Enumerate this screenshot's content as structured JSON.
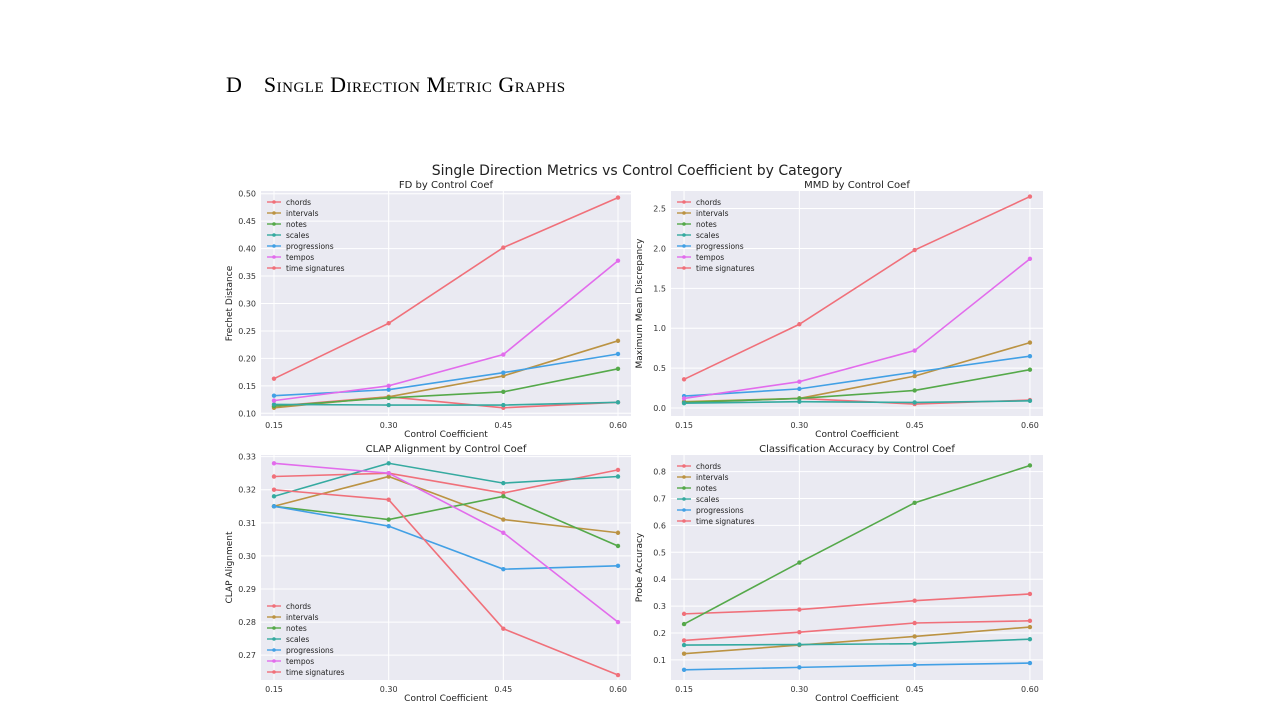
{
  "section": {
    "number": "D",
    "title": "Single Direction Metric Graphs"
  },
  "chart_data": {
    "suptitle": "Single Direction Metrics vs Control Coefficient by Category",
    "colors": {
      "chords": "#f0707a",
      "intervals": "#bb9343",
      "notes": "#55a94a",
      "scales": "#35aaa0",
      "progressions": "#42a0e5",
      "tempos": "#e26cec",
      "time signatures": "#f0707a"
    },
    "charts": [
      {
        "type": "line",
        "title": "FD by Control Coef",
        "xlabel": "Control Coefficient",
        "ylabel": "Frechet Distance",
        "x": [
          0.15,
          0.3,
          0.45,
          0.6
        ],
        "xticks": [
          "0.15",
          "0.30",
          "0.45",
          "0.60"
        ],
        "ylim": [
          0.095,
          0.505
        ],
        "yticks": [
          "0.10",
          "0.15",
          "0.20",
          "0.25",
          "0.30",
          "0.35",
          "0.40",
          "0.45",
          "0.50"
        ],
        "legend_position": "upper-left",
        "grid": true,
        "series": [
          {
            "name": "chords",
            "values": [
              0.113,
              0.13,
              0.11,
              0.12
            ]
          },
          {
            "name": "intervals",
            "values": [
              0.11,
              0.13,
              0.168,
              0.232
            ]
          },
          {
            "name": "notes",
            "values": [
              0.113,
              0.128,
              0.139,
              0.181
            ]
          },
          {
            "name": "scales",
            "values": [
              0.116,
              0.115,
              0.115,
              0.12
            ]
          },
          {
            "name": "progressions",
            "values": [
              0.132,
              0.143,
              0.174,
              0.208
            ]
          },
          {
            "name": "tempos",
            "values": [
              0.123,
              0.15,
              0.207,
              0.378
            ]
          },
          {
            "name": "time signatures",
            "values": [
              0.163,
              0.264,
              0.402,
              0.493
            ]
          }
        ]
      },
      {
        "type": "line",
        "title": "MMD by Control Coef",
        "xlabel": "Control Coefficient",
        "ylabel": "Maximum Mean Discrepancy",
        "x": [
          0.15,
          0.3,
          0.45,
          0.6
        ],
        "xticks": [
          "0.15",
          "0.30",
          "0.45",
          "0.60"
        ],
        "ylim": [
          -0.1,
          2.72
        ],
        "yticks": [
          "0.0",
          "0.5",
          "1.0",
          "1.5",
          "2.0",
          "2.5"
        ],
        "legend_position": "upper-left",
        "grid": true,
        "series": [
          {
            "name": "chords",
            "values": [
              0.07,
              0.12,
              0.05,
              0.1
            ]
          },
          {
            "name": "intervals",
            "values": [
              0.08,
              0.12,
              0.4,
              0.82
            ]
          },
          {
            "name": "notes",
            "values": [
              0.07,
              0.12,
              0.22,
              0.48
            ]
          },
          {
            "name": "scales",
            "values": [
              0.06,
              0.08,
              0.07,
              0.09
            ]
          },
          {
            "name": "progressions",
            "values": [
              0.15,
              0.24,
              0.45,
              0.65
            ]
          },
          {
            "name": "tempos",
            "values": [
              0.12,
              0.33,
              0.72,
              1.87
            ]
          },
          {
            "name": "time signatures",
            "values": [
              0.36,
              1.05,
              1.98,
              2.65
            ]
          }
        ]
      },
      {
        "type": "line",
        "title": "CLAP Alignment by Control Coef",
        "xlabel": "Control Coefficient",
        "ylabel": "CLAP Alignment",
        "x": [
          0.15,
          0.3,
          0.45,
          0.6
        ],
        "xticks": [
          "0.15",
          "0.30",
          "0.45",
          "0.60"
        ],
        "ylim": [
          0.2625,
          0.3305
        ],
        "yticks": [
          "0.27",
          "0.28",
          "0.29",
          "0.30",
          "0.31",
          "0.32",
          "0.33"
        ],
        "legend_position": "lower-left",
        "grid": true,
        "series": [
          {
            "name": "chords",
            "values": [
              0.324,
              0.325,
              0.319,
              0.326
            ]
          },
          {
            "name": "intervals",
            "values": [
              0.315,
              0.324,
              0.311,
              0.307
            ]
          },
          {
            "name": "notes",
            "values": [
              0.315,
              0.311,
              0.318,
              0.303
            ]
          },
          {
            "name": "scales",
            "values": [
              0.318,
              0.328,
              0.322,
              0.324
            ]
          },
          {
            "name": "progressions",
            "values": [
              0.315,
              0.309,
              0.296,
              0.297
            ]
          },
          {
            "name": "tempos",
            "values": [
              0.328,
              0.325,
              0.307,
              0.28
            ]
          },
          {
            "name": "time signatures",
            "values": [
              0.32,
              0.317,
              0.278,
              0.264
            ]
          }
        ]
      },
      {
        "type": "line",
        "title": "Classification Accuracy by Control Coef",
        "xlabel": "Control Coefficient",
        "ylabel": "Probe Accuracy",
        "x": [
          0.15,
          0.3,
          0.45,
          0.6
        ],
        "xticks": [
          "0.15",
          "0.30",
          "0.45",
          "0.60"
        ],
        "ylim": [
          0.025,
          0.862
        ],
        "yticks": [
          "0.1",
          "0.2",
          "0.3",
          "0.4",
          "0.5",
          "0.6",
          "0.7",
          "0.8"
        ],
        "legend_position": "upper-left",
        "grid": true,
        "series": [
          {
            "name": "chords",
            "values": [
              0.271,
              0.287,
              0.32,
              0.345
            ]
          },
          {
            "name": "intervals",
            "values": [
              0.123,
              0.155,
              0.187,
              0.222
            ]
          },
          {
            "name": "notes",
            "values": [
              0.233,
              0.462,
              0.684,
              0.823
            ]
          },
          {
            "name": "scales",
            "values": [
              0.155,
              0.157,
              0.16,
              0.177
            ]
          },
          {
            "name": "progressions",
            "values": [
              0.063,
              0.072,
              0.081,
              0.088
            ]
          },
          {
            "name": "time signatures",
            "values": [
              0.172,
              0.203,
              0.237,
              0.245
            ]
          }
        ]
      }
    ]
  }
}
